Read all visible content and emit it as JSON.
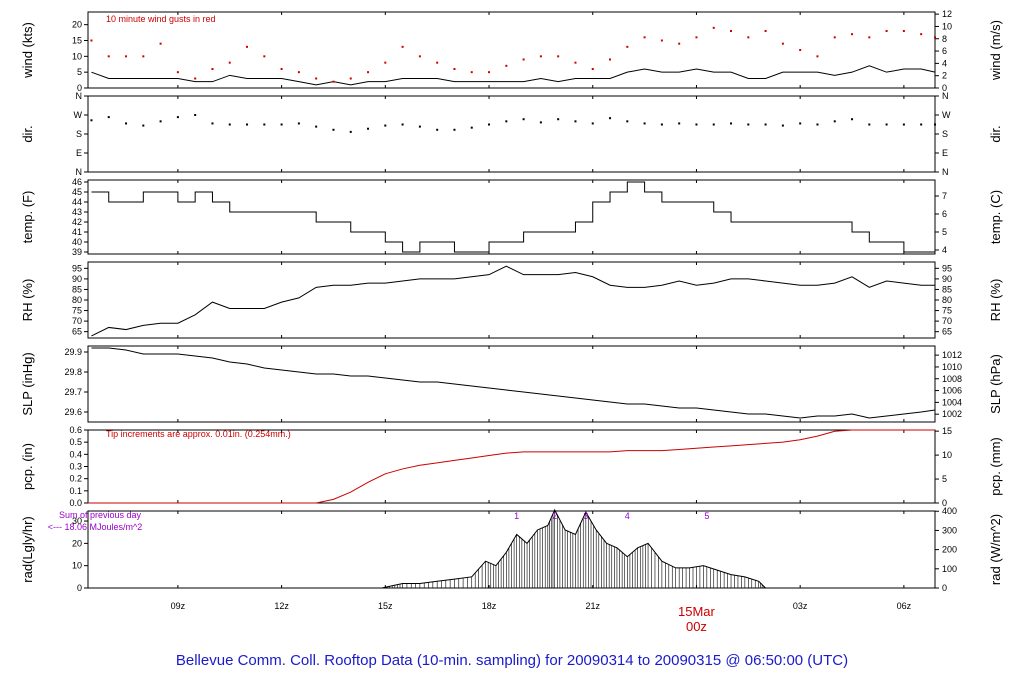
{
  "footer_title": "Bellevue Comm. Coll. Rooftop Data (10-min. sampling) for 20090314  to  20090315 @ 06:50:00  (UTC)",
  "x_ticks": [
    "09z",
    "12z",
    "15z",
    "18z",
    "21z",
    "00z",
    "03z",
    "06z"
  ],
  "date_label": "15Mar",
  "colors": {
    "main": "#000000",
    "gust": "#cc0000",
    "precip": "#cc0000",
    "note": "#cc0000",
    "purple": "#9900cc",
    "footer": "#1a1acc"
  },
  "chart_data": [
    {
      "type": "line",
      "id": "wind",
      "ylabel": "wind (kts)",
      "ylabel_right": "wind (m/s)",
      "annotation": "10  minute wind gusts in red",
      "ylim": [
        0,
        24
      ],
      "yticks": [
        0,
        5,
        10,
        15,
        20
      ],
      "right_ticks": [
        0,
        2,
        4,
        6,
        8,
        10,
        12
      ],
      "right_factor": 0.5144,
      "x_hours": [
        6.5,
        7,
        7.5,
        8,
        8.5,
        9,
        9.5,
        10,
        10.5,
        11,
        11.5,
        12,
        12.5,
        13,
        13.5,
        14,
        14.5,
        15,
        15.5,
        16,
        16.5,
        17,
        17.5,
        18,
        18.5,
        19,
        19.5,
        20,
        20.5,
        21,
        21.5,
        22,
        22.5,
        23,
        23.5,
        24,
        24.5,
        25,
        25.5,
        26,
        26.5,
        27,
        27.5,
        28,
        28.5,
        29,
        29.5,
        30,
        30.5,
        30.9
      ],
      "series": [
        {
          "values": [
            5,
            3,
            3,
            3,
            3,
            3,
            2,
            2,
            4,
            3,
            3,
            3,
            2,
            1,
            2,
            1,
            2,
            2,
            3,
            3,
            3,
            2,
            2,
            2,
            2,
            2,
            3,
            2,
            3,
            3,
            3,
            5,
            6,
            5,
            5,
            6,
            5,
            5,
            3,
            3,
            5,
            5,
            5,
            4,
            5,
            7,
            5,
            6,
            6,
            5
          ]
        },
        {
          "values": [
            15,
            10,
            10,
            10,
            14,
            5,
            3,
            6,
            8,
            13,
            10,
            6,
            5,
            3,
            2,
            3,
            5,
            8,
            13,
            10,
            8,
            6,
            5,
            5,
            7,
            9,
            10,
            10,
            8,
            6,
            9,
            13,
            16,
            15,
            14,
            16,
            19,
            18,
            16,
            18,
            14,
            12,
            10,
            16,
            17,
            16,
            18,
            18,
            17,
            16
          ]
        }
      ]
    },
    {
      "type": "scatter",
      "id": "direction",
      "ylabel": "dir.",
      "ylabel_right": "dir.",
      "ylim": [
        0,
        360
      ],
      "ytick_labels": [
        "N",
        "E",
        "S",
        "W",
        "N"
      ],
      "x_hours": [
        6.5,
        7,
        7.5,
        8,
        8.5,
        9,
        9.5,
        10,
        10.5,
        11,
        11.5,
        12,
        12.5,
        13,
        13.5,
        14,
        14.5,
        15,
        15.5,
        16,
        16.5,
        17,
        17.5,
        18,
        18.5,
        19,
        19.5,
        20,
        20.5,
        21,
        21.5,
        22,
        22.5,
        23,
        23.5,
        24,
        24.5,
        25,
        25.5,
        26,
        26.5,
        27,
        27.5,
        28,
        28.5,
        29,
        29.5,
        30,
        30.5,
        30.9
      ],
      "values": [
        245,
        260,
        230,
        220,
        240,
        260,
        270,
        230,
        225,
        225,
        225,
        225,
        230,
        215,
        200,
        190,
        205,
        220,
        225,
        215,
        200,
        200,
        210,
        225,
        240,
        250,
        235,
        250,
        240,
        230,
        255,
        240,
        230,
        225,
        230,
        225,
        225,
        230,
        225,
        225,
        220,
        230,
        225,
        240,
        250,
        225,
        225,
        225,
        225,
        225
      ]
    },
    {
      "type": "line",
      "id": "temperature",
      "ylabel": "temp. (F)",
      "ylabel_right": "temp. (C)",
      "ylim": [
        38.8,
        46.2
      ],
      "yticks": [
        39,
        40,
        41,
        42,
        43,
        44,
        45,
        46
      ],
      "right_ticks": [
        4,
        5,
        6,
        7
      ],
      "x_hours": [
        6.5,
        7,
        7.5,
        8,
        8.5,
        9,
        9.5,
        10,
        10.5,
        11,
        11.5,
        12,
        12.5,
        13,
        13.5,
        14,
        14.5,
        15,
        15.5,
        16,
        16.5,
        17,
        17.5,
        18,
        18.5,
        19,
        19.5,
        20,
        20.5,
        21,
        21.5,
        22,
        22.5,
        23,
        23.5,
        24,
        24.5,
        25,
        25.5,
        26,
        26.5,
        27,
        27.5,
        28,
        28.5,
        29,
        29.5,
        30,
        30.5,
        30.9
      ],
      "values": [
        45,
        44,
        44,
        45,
        45,
        44,
        45,
        44,
        43,
        43,
        43,
        43,
        43,
        42,
        42,
        41,
        41,
        40,
        39,
        40,
        40,
        39,
        39,
        40,
        40,
        41,
        41,
        41,
        42,
        44,
        45,
        46,
        45,
        44,
        44,
        44,
        43,
        42,
        42,
        42,
        42,
        42,
        42,
        42,
        41,
        40,
        40,
        39,
        39,
        39
      ]
    },
    {
      "type": "line",
      "id": "humidity",
      "ylabel": "RH (%)",
      "ylabel_right": "RH (%)",
      "ylim": [
        62,
        98
      ],
      "yticks": [
        65,
        70,
        75,
        80,
        85,
        90,
        95
      ],
      "x_hours": [
        6.5,
        7,
        7.5,
        8,
        8.5,
        9,
        9.5,
        10,
        10.5,
        11,
        11.5,
        12,
        12.5,
        13,
        13.5,
        14,
        14.5,
        15,
        15.5,
        16,
        16.5,
        17,
        17.5,
        18,
        18.5,
        19,
        19.5,
        20,
        20.5,
        21,
        21.5,
        22,
        22.5,
        23,
        23.5,
        24,
        24.5,
        25,
        25.5,
        26,
        26.5,
        27,
        27.5,
        28,
        28.5,
        29,
        29.5,
        30,
        30.5,
        30.9
      ],
      "values": [
        63,
        67,
        66,
        68,
        69,
        69,
        73,
        79,
        76,
        76,
        76,
        79,
        81,
        86,
        87,
        87,
        88,
        88,
        89,
        90,
        90,
        90,
        91,
        92,
        96,
        92,
        92,
        92,
        93,
        91,
        87,
        86,
        86,
        87,
        89,
        87,
        88,
        90,
        90,
        89,
        88,
        87,
        87,
        88,
        91,
        86,
        89,
        88,
        87,
        87
      ]
    },
    {
      "type": "line",
      "id": "pressure",
      "ylabel": "SLP (inHg)",
      "ylabel_right": "SLP (hPa)",
      "ylim": [
        29.55,
        29.93
      ],
      "yticks": [
        29.6,
        29.7,
        29.8,
        29.9
      ],
      "right_ticks": [
        1002,
        1004,
        1006,
        1008,
        1010,
        1012
      ],
      "right_factor": 33.8639,
      "x_hours": [
        6.5,
        7,
        7.5,
        8,
        8.5,
        9,
        9.5,
        10,
        10.5,
        11,
        11.5,
        12,
        12.5,
        13,
        13.5,
        14,
        14.5,
        15,
        15.5,
        16,
        16.5,
        17,
        17.5,
        18,
        18.5,
        19,
        19.5,
        20,
        20.5,
        21,
        21.5,
        22,
        22.5,
        23,
        23.5,
        24,
        24.5,
        25,
        25.5,
        26,
        26.5,
        27,
        27.5,
        28,
        28.5,
        29,
        29.5,
        30,
        30.5,
        30.9
      ],
      "values": [
        29.92,
        29.92,
        29.91,
        29.89,
        29.89,
        29.89,
        29.88,
        29.87,
        29.85,
        29.84,
        29.82,
        29.81,
        29.8,
        29.79,
        29.79,
        29.78,
        29.78,
        29.77,
        29.76,
        29.75,
        29.75,
        29.74,
        29.73,
        29.72,
        29.71,
        29.7,
        29.69,
        29.68,
        29.67,
        29.66,
        29.65,
        29.64,
        29.64,
        29.63,
        29.62,
        29.62,
        29.61,
        29.6,
        29.59,
        29.59,
        29.58,
        29.57,
        29.58,
        29.58,
        29.59,
        29.57,
        29.58,
        29.59,
        29.6,
        29.61
      ]
    },
    {
      "type": "line",
      "id": "precipitation",
      "ylabel": "pcp. (in)",
      "ylabel_right": "pcp. (mm)",
      "annotation": "Tip increments are approx. 0.01in. (0.254mm.)",
      "ylim": [
        0,
        0.6
      ],
      "yticks": [
        0.0,
        0.1,
        0.2,
        0.3,
        0.4,
        0.5,
        0.6
      ],
      "right_ticks": [
        0,
        5,
        10,
        15
      ],
      "right_factor": 25.4,
      "x_hours": [
        6.5,
        7,
        7.5,
        8,
        8.5,
        9,
        9.5,
        10,
        10.5,
        11,
        11.5,
        12,
        12.5,
        13,
        13.5,
        14,
        14.5,
        15,
        15.5,
        16,
        16.5,
        17,
        17.5,
        18,
        18.5,
        19,
        19.5,
        20,
        20.5,
        21,
        21.5,
        22,
        22.5,
        23,
        23.5,
        24,
        24.5,
        25,
        25.5,
        26,
        26.5,
        27,
        27.5,
        28,
        28.5,
        29,
        29.5,
        30,
        30.5,
        30.9
      ],
      "values": [
        0,
        0,
        0,
        0,
        0,
        0,
        0,
        0,
        0,
        0,
        0,
        0,
        0,
        0,
        0.03,
        0.09,
        0.17,
        0.24,
        0.28,
        0.31,
        0.33,
        0.35,
        0.37,
        0.39,
        0.41,
        0.42,
        0.42,
        0.42,
        0.42,
        0.42,
        0.42,
        0.43,
        0.43,
        0.43,
        0.44,
        0.45,
        0.46,
        0.47,
        0.48,
        0.49,
        0.5,
        0.52,
        0.55,
        0.59,
        0.6,
        0.6,
        0.6,
        0.6,
        0.6,
        0.6
      ]
    },
    {
      "type": "area",
      "id": "radiation",
      "ylabel": "rad(Lgly/hr)",
      "ylabel_right": "rad (W/m^2)",
      "note_line1": "Sum of previous day",
      "note_line2": "<--- 18.06 MJoules/m^2",
      "ylim": [
        0,
        34.5
      ],
      "yticks": [
        0,
        10,
        20,
        30
      ],
      "right_ticks": [
        0,
        100,
        200,
        300,
        400
      ],
      "right_factor": 11.63,
      "markers": [
        {
          "label": "1",
          "x_hour": 18.8
        },
        {
          "label": "2",
          "x_hour": 19.9
        },
        {
          "label": "3",
          "x_hour": 20.8
        },
        {
          "label": "4",
          "x_hour": 22.0
        },
        {
          "label": "5",
          "x_hour": 24.3
        }
      ],
      "x_hours": [
        14.9,
        15.2,
        15.5,
        16.0,
        16.5,
        17.0,
        17.5,
        17.9,
        18.2,
        18.5,
        18.8,
        19.1,
        19.4,
        19.7,
        19.9,
        20.2,
        20.5,
        20.8,
        21.1,
        21.4,
        21.7,
        22.0,
        22.3,
        22.6,
        23.0,
        23.4,
        23.8,
        24.2,
        24.6,
        25.0,
        25.4,
        25.8,
        26.0
      ],
      "values": [
        0,
        1,
        2,
        2,
        3,
        4,
        5,
        12,
        10,
        16,
        24,
        20,
        26,
        28,
        35,
        26,
        24,
        34,
        26,
        20,
        18,
        14,
        18,
        20,
        12,
        9,
        9,
        10,
        8,
        6,
        5,
        3,
        0
      ]
    }
  ]
}
